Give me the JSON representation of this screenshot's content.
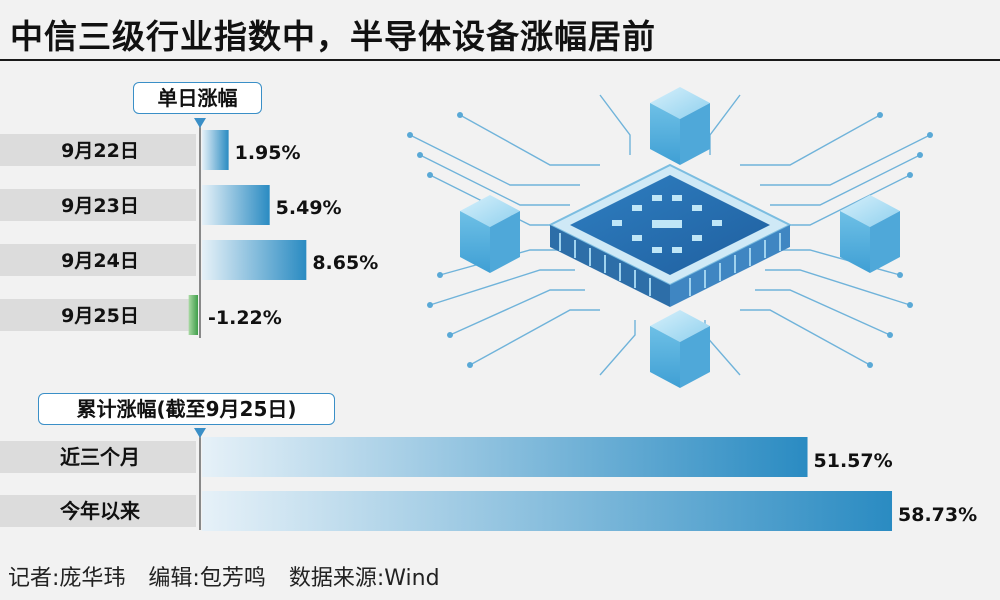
{
  "title": "中信三级行业指数中，半导体设备涨幅居前",
  "chart_data": [
    {
      "type": "bar",
      "title": "单日涨幅",
      "categories": [
        "9月22日",
        "9月23日",
        "9月24日",
        "9月25日"
      ],
      "values": [
        1.95,
        5.49,
        8.65,
        -1.22
      ],
      "value_labels": [
        "1.95%",
        "5.49%",
        "8.65%",
        "-1.22%"
      ],
      "orientation": "horizontal",
      "colors": {
        "positive": "#2a8bc2",
        "negative": "#3f9e4a"
      }
    },
    {
      "type": "bar",
      "title": "累计涨幅(截至9月25日)",
      "categories": [
        "近三个月",
        "今年以来"
      ],
      "values": [
        51.57,
        58.73
      ],
      "value_labels": [
        "51.57%",
        "58.73%"
      ],
      "orientation": "horizontal",
      "colors": {
        "positive": "#2a8bc2"
      }
    }
  ],
  "footer": {
    "reporter": "记者:庞华玮",
    "editor": "编辑:包芳鸣",
    "source": "数据来源:Wind"
  },
  "illustration": {
    "icon": "semiconductor-chip-icon",
    "accent": "#4aa8d8"
  }
}
